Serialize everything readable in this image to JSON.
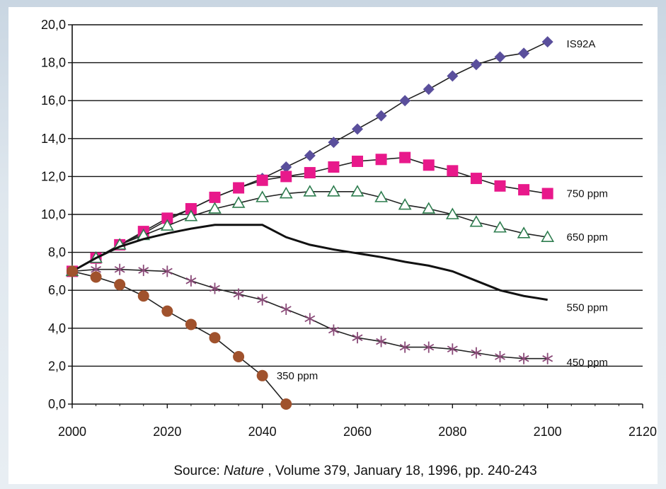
{
  "chart_data": {
    "type": "line",
    "title": "",
    "xlabel": "",
    "ylabel": "",
    "xlim": [
      2000,
      2120
    ],
    "ylim": [
      0,
      20
    ],
    "x_ticks": [
      "2000",
      "2020",
      "2040",
      "2060",
      "2080",
      "2100",
      "2120"
    ],
    "y_ticks": [
      "0,0",
      "2,0",
      "4,0",
      "6,0",
      "8,0",
      "10,0",
      "12,0",
      "14,0",
      "16,0",
      "18,0",
      "20,0"
    ],
    "grid": "horizontal",
    "series": [
      {
        "name": "IS92A",
        "color": "#5a4f9c",
        "marker": "diamond",
        "x": [
          2000,
          2005,
          2010,
          2015,
          2020,
          2025,
          2030,
          2035,
          2040,
          2045,
          2050,
          2055,
          2060,
          2065,
          2070,
          2075,
          2080,
          2085,
          2090,
          2095,
          2100
        ],
        "y": [
          7.0,
          7.7,
          8.4,
          9.0,
          9.7,
          10.3,
          10.9,
          11.4,
          11.9,
          12.5,
          13.1,
          13.8,
          14.5,
          15.2,
          16.0,
          16.6,
          17.3,
          17.9,
          18.3,
          18.5,
          19.1
        ]
      },
      {
        "name": "750 ppm",
        "color": "#e8198b",
        "marker": "square",
        "x": [
          2000,
          2005,
          2010,
          2015,
          2020,
          2025,
          2030,
          2035,
          2040,
          2045,
          2050,
          2055,
          2060,
          2065,
          2070,
          2075,
          2080,
          2085,
          2090,
          2095,
          2100
        ],
        "y": [
          7.0,
          7.7,
          8.4,
          9.1,
          9.8,
          10.3,
          10.9,
          11.4,
          11.8,
          12.0,
          12.2,
          12.5,
          12.8,
          12.9,
          13.0,
          12.6,
          12.3,
          11.9,
          11.5,
          11.3,
          11.1
        ]
      },
      {
        "name": "650 ppm",
        "color": "#2e7d4f",
        "marker": "triangle",
        "x": [
          2000,
          2005,
          2010,
          2015,
          2020,
          2025,
          2030,
          2035,
          2040,
          2045,
          2050,
          2055,
          2060,
          2065,
          2070,
          2075,
          2080,
          2085,
          2090,
          2095,
          2100
        ],
        "y": [
          7.0,
          7.7,
          8.4,
          8.9,
          9.4,
          9.9,
          10.3,
          10.6,
          10.9,
          11.1,
          11.2,
          11.2,
          11.2,
          10.9,
          10.5,
          10.3,
          10.0,
          9.6,
          9.3,
          9.0,
          8.8
        ]
      },
      {
        "name": "550 ppm",
        "color": "#111111",
        "marker": "none",
        "x": [
          2000,
          2005,
          2010,
          2015,
          2020,
          2025,
          2030,
          2035,
          2040,
          2045,
          2050,
          2055,
          2060,
          2065,
          2070,
          2075,
          2080,
          2085,
          2090,
          2095,
          2100
        ],
        "y": [
          7.0,
          7.7,
          8.3,
          8.7,
          9.0,
          9.25,
          9.45,
          9.45,
          9.45,
          8.8,
          8.4,
          8.15,
          7.95,
          7.75,
          7.5,
          7.3,
          7.0,
          6.5,
          6.0,
          5.7,
          5.5
        ]
      },
      {
        "name": "450 ppm",
        "color": "#8a4a78",
        "marker": "asterisk",
        "x": [
          2000,
          2005,
          2010,
          2015,
          2020,
          2025,
          2030,
          2035,
          2040,
          2045,
          2050,
          2055,
          2060,
          2065,
          2070,
          2075,
          2080,
          2085,
          2090,
          2095,
          2100
        ],
        "y": [
          7.0,
          7.1,
          7.1,
          7.05,
          7.0,
          6.5,
          6.1,
          5.8,
          5.5,
          5.0,
          4.5,
          3.9,
          3.5,
          3.3,
          3.0,
          3.0,
          2.9,
          2.7,
          2.5,
          2.4,
          2.4
        ]
      },
      {
        "name": "350 ppm",
        "color": "#a0522d",
        "marker": "circle",
        "x": [
          2000,
          2005,
          2010,
          2015,
          2020,
          2025,
          2030,
          2035,
          2040,
          2045
        ],
        "y": [
          7.0,
          6.7,
          6.3,
          5.7,
          4.9,
          4.2,
          3.5,
          2.5,
          1.5,
          0.0
        ]
      }
    ],
    "annotations": [
      {
        "text": "IS92A",
        "x": 2104,
        "y": 19.0
      },
      {
        "text": "750 ppm",
        "x": 2104,
        "y": 11.1
      },
      {
        "text": "650 ppm",
        "x": 2104,
        "y": 8.8
      },
      {
        "text": "550 ppm",
        "x": 2104,
        "y": 5.1
      },
      {
        "text": "450 ppm",
        "x": 2104,
        "y": 2.2
      },
      {
        "text": "350 ppm",
        "x": 2043,
        "y": 1.5
      }
    ],
    "caption_prefix": "Source: ",
    "caption_italic": "Nature",
    "caption_suffix": " , Volume 379, January 18, 1996, pp. 240-243"
  }
}
